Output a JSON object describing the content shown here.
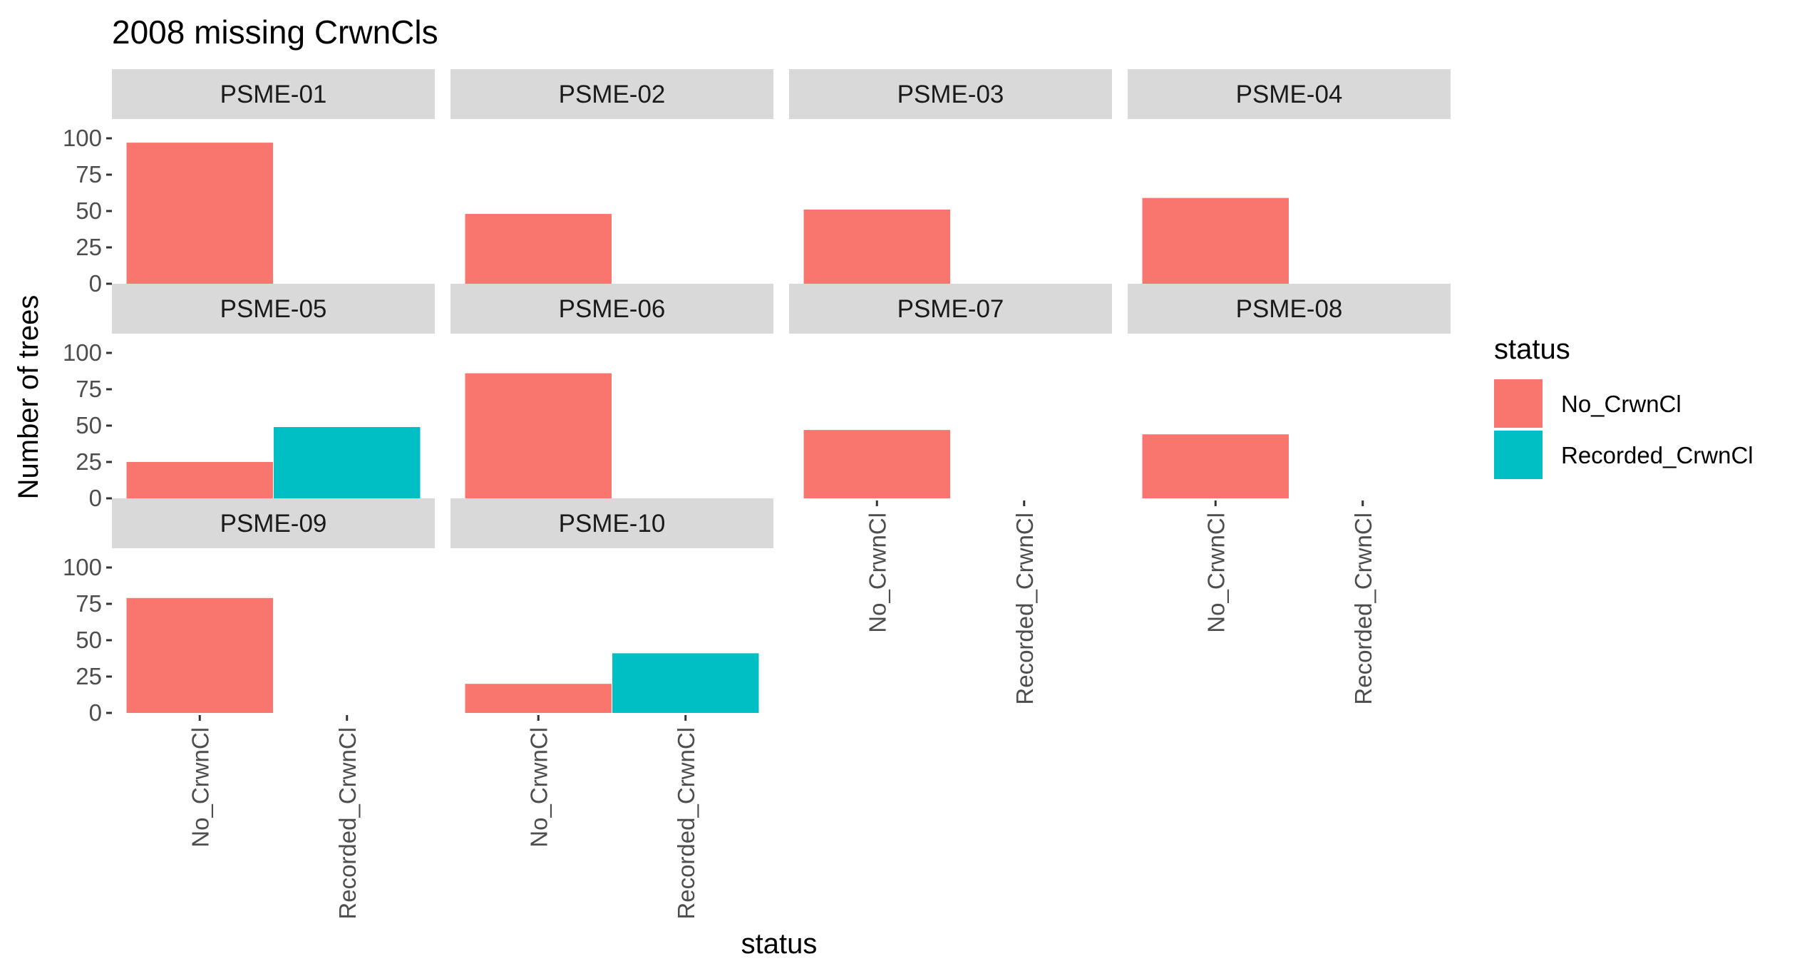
{
  "chart_data": {
    "type": "bar",
    "title": "2008 missing CrwnCls",
    "xlabel": "status",
    "ylabel": "Number of trees",
    "categories": [
      "No_CrwnCl",
      "Recorded_CrwnCl"
    ],
    "ylim": [
      0,
      100
    ],
    "yticks": [
      0,
      25,
      50,
      75,
      100
    ],
    "grid": false,
    "facet_layout": "wrap, 4 columns",
    "legend": {
      "title": "status",
      "position": "right",
      "entries": [
        {
          "label": "No_CrwnCl",
          "color": "#F8766D"
        },
        {
          "label": "Recorded_CrwnCl",
          "color": "#00BFC4"
        }
      ]
    },
    "panels": [
      {
        "name": "PSME-01",
        "values": [
          97,
          null
        ]
      },
      {
        "name": "PSME-02",
        "values": [
          48,
          null
        ]
      },
      {
        "name": "PSME-03",
        "values": [
          51,
          null
        ]
      },
      {
        "name": "PSME-04",
        "values": [
          59,
          null
        ]
      },
      {
        "name": "PSME-05",
        "values": [
          25,
          49
        ]
      },
      {
        "name": "PSME-06",
        "values": [
          86,
          null
        ]
      },
      {
        "name": "PSME-07",
        "values": [
          47,
          null
        ]
      },
      {
        "name": "PSME-08",
        "values": [
          44,
          null
        ]
      },
      {
        "name": "PSME-09",
        "values": [
          79,
          null
        ]
      },
      {
        "name": "PSME-10",
        "values": [
          20,
          41
        ]
      }
    ]
  }
}
